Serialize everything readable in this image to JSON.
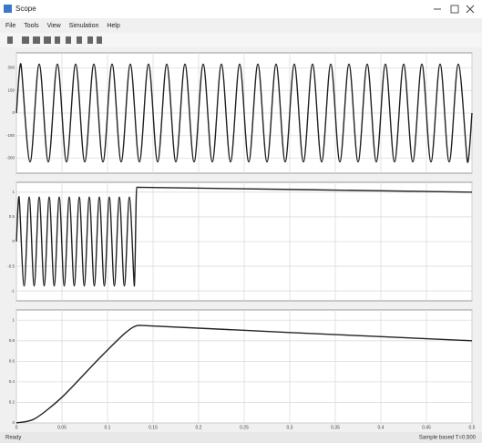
{
  "window": {
    "title": "Scope",
    "menu": [
      "File",
      "Tools",
      "View",
      "Simulation",
      "Help"
    ]
  },
  "status": {
    "left": "Ready",
    "right": "Sample based  T=0.500"
  },
  "chart_data": [
    {
      "type": "line",
      "grid": true,
      "xlim": [
        0,
        0.5
      ],
      "xticks": [
        0,
        0.05,
        0.1,
        0.15,
        0.2,
        0.25,
        0.3,
        0.35,
        0.4,
        0.45,
        0.5
      ],
      "ylim": [
        -400,
        400
      ],
      "yticks": [
        -300,
        -150,
        0,
        150,
        300
      ],
      "x": [
        0,
        0.005,
        0.015,
        0.025,
        0.035,
        0.045,
        0.055,
        0.065,
        0.075,
        0.085,
        0.095,
        0.105,
        0.115,
        0.125,
        0.135,
        0.145,
        0.155,
        0.165,
        0.175,
        0.185,
        0.195,
        0.205,
        0.215,
        0.225,
        0.235,
        0.245,
        0.255,
        0.265,
        0.275,
        0.285,
        0.295,
        0.305,
        0.315,
        0.325,
        0.335,
        0.345,
        0.355,
        0.365,
        0.375,
        0.385,
        0.395,
        0.405,
        0.415,
        0.425,
        0.435,
        0.445,
        0.455,
        0.465,
        0.475,
        0.485,
        0.495,
        0.5
      ],
      "series": [
        {
          "color": "#222222",
          "values": [
            0,
            325,
            -325,
            325,
            -325,
            325,
            -325,
            325,
            -325,
            325,
            -325,
            325,
            -325,
            325,
            -325,
            325,
            -325,
            325,
            -325,
            325,
            -325,
            325,
            -325,
            325,
            -325,
            325,
            -325,
            325,
            -325,
            325,
            -325,
            325,
            -325,
            325,
            -325,
            325,
            -325,
            325,
            -325,
            325,
            -325,
            325,
            -325,
            325,
            -325,
            325,
            -325,
            325,
            -325,
            325,
            -325,
            0
          ]
        }
      ]
    },
    {
      "type": "line",
      "grid": true,
      "xlim": [
        0,
        0.5
      ],
      "xticks": [
        0,
        0.05,
        0.1,
        0.15,
        0.2,
        0.25,
        0.3,
        0.35,
        0.4,
        0.45,
        0.5
      ],
      "ylim": [
        -1.2,
        1.2
      ],
      "yticks": [
        -1,
        -0.5,
        0,
        0.5,
        1
      ],
      "x": [
        0,
        0.003,
        0.0085,
        0.014,
        0.0195,
        0.025,
        0.0305,
        0.036,
        0.0415,
        0.047,
        0.0525,
        0.058,
        0.0635,
        0.069,
        0.0745,
        0.08,
        0.0855,
        0.091,
        0.0965,
        0.102,
        0.1075,
        0.113,
        0.1185,
        0.124,
        0.1295,
        0.132,
        0.5
      ],
      "series": [
        {
          "color": "#222222",
          "values": [
            0,
            0.9,
            -0.9,
            0.9,
            -0.9,
            0.9,
            -0.9,
            0.9,
            -0.9,
            0.9,
            -0.9,
            0.9,
            -0.9,
            0.9,
            -0.9,
            0.9,
            -0.9,
            0.9,
            -0.9,
            0.9,
            -0.9,
            0.9,
            -0.9,
            0.9,
            -0.9,
            1.1,
            1.0
          ]
        }
      ]
    },
    {
      "type": "line",
      "grid": true,
      "xlim": [
        0,
        0.5
      ],
      "xticks": [
        0,
        0.05,
        0.1,
        0.15,
        0.2,
        0.25,
        0.3,
        0.35,
        0.4,
        0.45,
        0.5
      ],
      "ylim": [
        0,
        1.1
      ],
      "yticks": [
        0,
        0.2,
        0.4,
        0.6,
        0.8,
        1
      ],
      "x": [
        0,
        0.02,
        0.05,
        0.09,
        0.12,
        0.135,
        0.3,
        0.5
      ],
      "series": [
        {
          "color": "#222222",
          "values": [
            0,
            0.04,
            0.25,
            0.62,
            0.88,
            0.95,
            0.88,
            0.8
          ]
        }
      ]
    }
  ]
}
